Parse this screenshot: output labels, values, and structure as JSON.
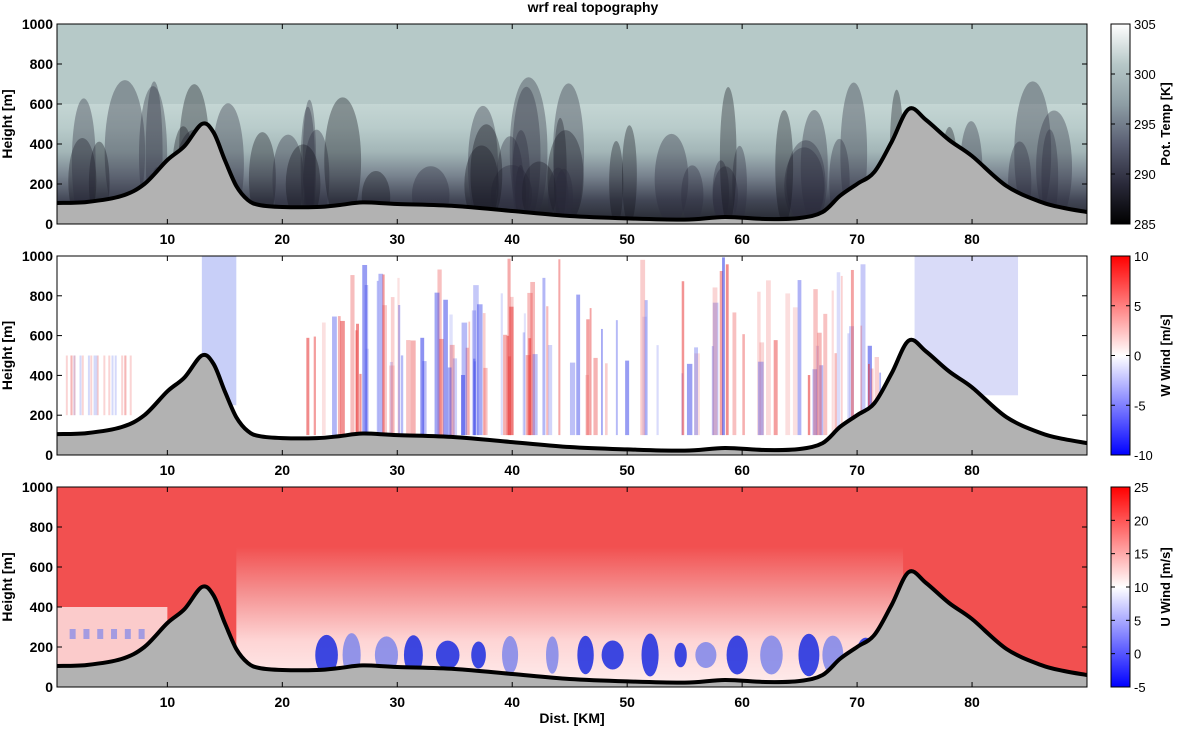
{
  "title": "wrf real topography",
  "chart_data": [
    {
      "type": "heatmap",
      "ylabel": "Height [m]",
      "xlim": [
        0.4,
        90
      ],
      "ylim": [
        0,
        1000
      ],
      "xticks": [
        10,
        20,
        30,
        40,
        50,
        60,
        70,
        80
      ],
      "yticks": [
        0,
        200,
        400,
        600,
        800,
        1000
      ],
      "colorbar": {
        "label": "Pot. Temp [K]",
        "range": [
          285,
          305
        ],
        "ticks": [
          285,
          290,
          295,
          300,
          305
        ]
      },
      "colormap": [
        "#000000",
        "#2a2a3a",
        "#5a5f73",
        "#8e9ea5",
        "#b7c8c8",
        "#ffffff"
      ],
      "topography_fill": "#b2b2b2",
      "topography_line": "#000000"
    },
    {
      "type": "heatmap",
      "ylabel": "Height [m]",
      "xlim": [
        0.4,
        90
      ],
      "ylim": [
        0,
        1000
      ],
      "xticks": [
        10,
        20,
        30,
        40,
        50,
        60,
        70,
        80
      ],
      "yticks": [
        0,
        200,
        400,
        600,
        800,
        1000
      ],
      "colorbar": {
        "label": "W Wind [m/s]",
        "range": [
          -10,
          10
        ],
        "ticks": [
          -10,
          -5,
          0,
          5,
          10
        ]
      },
      "colormap": [
        "#0000ff",
        "#ffffff",
        "#ff0000"
      ],
      "topography_fill": "#b2b2b2",
      "topography_line": "#000000"
    },
    {
      "type": "heatmap",
      "xlabel": "Dist. [KM]",
      "ylabel": "Height [m]",
      "xlim": [
        0.4,
        90
      ],
      "ylim": [
        0,
        1000
      ],
      "xticks": [
        10,
        20,
        30,
        40,
        50,
        60,
        70,
        80
      ],
      "yticks": [
        0,
        200,
        400,
        600,
        800,
        1000
      ],
      "colorbar": {
        "label": "U Wind [m/s]",
        "range": [
          -5,
          25
        ],
        "ticks": [
          -5,
          0,
          5,
          10,
          15,
          20,
          25
        ]
      },
      "colormap": [
        "#0000ff",
        "#ffffff",
        "#ff0000"
      ],
      "topography_fill": "#b2b2b2",
      "topography_line": "#000000"
    }
  ],
  "topography": {
    "x": [
      0.4,
      3,
      6,
      8,
      10,
      11.5,
      13,
      14,
      15,
      16,
      17,
      18,
      20,
      23,
      25,
      27,
      30,
      35,
      40,
      45,
      50,
      55,
      58.5,
      62,
      65,
      67,
      68.5,
      70,
      71.5,
      73,
      74.5,
      76,
      78,
      80,
      83,
      86,
      88,
      90
    ],
    "y": [
      105,
      110,
      140,
      200,
      320,
      390,
      500,
      460,
      320,
      190,
      120,
      95,
      85,
      85,
      95,
      108,
      100,
      90,
      65,
      40,
      28,
      22,
      35,
      25,
      30,
      60,
      140,
      200,
      260,
      410,
      575,
      520,
      420,
      340,
      190,
      110,
      80,
      60
    ]
  }
}
